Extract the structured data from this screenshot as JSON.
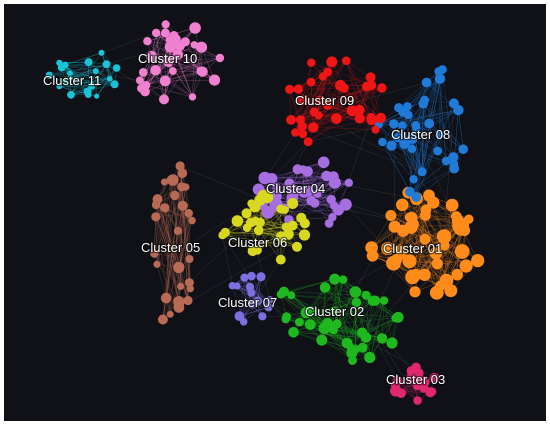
{
  "graph": {
    "background": "#0f1117",
    "clusters": [
      {
        "id": "c01",
        "label": "Cluster 01",
        "color": "#ff8c1a"
      },
      {
        "id": "c02",
        "label": "Cluster 02",
        "color": "#1fb81f"
      },
      {
        "id": "c03",
        "label": "Cluster 03",
        "color": "#e0286e"
      },
      {
        "id": "c04",
        "label": "Cluster 04",
        "color": "#a66ee0"
      },
      {
        "id": "c05",
        "label": "Cluster 05",
        "color": "#b86a55"
      },
      {
        "id": "c06",
        "label": "Cluster 06",
        "color": "#d8d820"
      },
      {
        "id": "c07",
        "label": "Cluster 07",
        "color": "#7c70e0"
      },
      {
        "id": "c08",
        "label": "Cluster 08",
        "color": "#1f7ad8"
      },
      {
        "id": "c09",
        "label": "Cluster 09",
        "color": "#f01616"
      },
      {
        "id": "c10",
        "label": "Cluster 10",
        "color": "#f080d0"
      },
      {
        "id": "c11",
        "label": "Cluster 11",
        "color": "#19c4d8"
      }
    ]
  }
}
